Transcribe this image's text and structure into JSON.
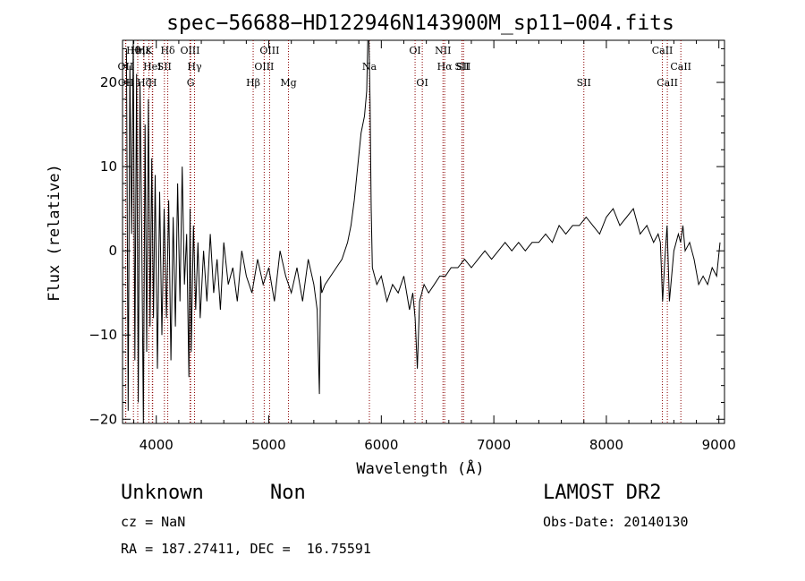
{
  "chart_data": {
    "type": "line",
    "title": "spec−56688−HD122946N143900M_sp11−004.fits",
    "xlabel": "Wavelength (Å)",
    "ylabel": "Flux (relative)",
    "xlim": [
      3700,
      9050
    ],
    "ylim": [
      -20.5,
      25
    ],
    "x_ticks": [
      4000,
      5000,
      6000,
      7000,
      8000,
      9000
    ],
    "x_tick_labels": [
      "4000",
      "5000",
      "6000",
      "7000",
      "8000",
      "9000"
    ],
    "y_ticks": [
      -20,
      -10,
      0,
      10,
      20
    ],
    "y_tick_labels": [
      "−20",
      "−10",
      "0",
      "10",
      "20"
    ],
    "grid": false,
    "line_color": "#000000",
    "marker_color": "#8b0000",
    "series": [
      {
        "values_x": [
          3735,
          3750,
          3765,
          3780,
          3795,
          3810,
          3825,
          3840,
          3855,
          3870,
          3885,
          3900,
          3915,
          3930,
          3945,
          3960,
          3975,
          3990,
          4010,
          4030,
          4050,
          4070,
          4090,
          4110,
          4130,
          4150,
          4170,
          4190,
          4210,
          4230,
          4250,
          4270,
          4290,
          4300,
          4310,
          4330,
          4350,
          4370,
          4390,
          4420,
          4450,
          4480,
          4510,
          4540,
          4570,
          4600,
          4640,
          4680,
          4720,
          4760,
          4800,
          4850,
          4900,
          4950,
          5000,
          5050,
          5100,
          5150,
          5200,
          5250,
          5300,
          5350,
          5400,
          5430,
          5450,
          5460,
          5470,
          5500,
          5550,
          5600,
          5650,
          5700,
          5730,
          5760,
          5790,
          5820,
          5850,
          5870,
          5880,
          5890,
          5900,
          5910,
          5920,
          5940,
          5960,
          6000,
          6050,
          6100,
          6150,
          6200,
          6250,
          6280,
          6300,
          6320,
          6340,
          6380,
          6420,
          6470,
          6520,
          6570,
          6620,
          6680,
          6740,
          6800,
          6860,
          6920,
          6980,
          7040,
          7100,
          7160,
          7220,
          7280,
          7340,
          7400,
          7460,
          7520,
          7580,
          7640,
          7700,
          7760,
          7820,
          7880,
          7940,
          8000,
          8060,
          8120,
          8180,
          8240,
          8300,
          8360,
          8420,
          8460,
          8480,
          8500,
          8520,
          8540,
          8560,
          8600,
          8640,
          8660,
          8680,
          8700,
          8740,
          8780,
          8820,
          8860,
          8900,
          8940,
          8980,
          9010
        ],
        "values_y": [
          24,
          -19,
          22,
          2,
          25,
          -13,
          21,
          -18,
          20,
          3,
          -21,
          15,
          -12,
          18,
          -9,
          11,
          -8,
          9,
          -14,
          7,
          -10,
          5,
          -8,
          6,
          -13,
          4,
          -9,
          8,
          -6,
          10,
          -4,
          2,
          -15,
          5,
          -12,
          3,
          -7,
          1,
          -8,
          0,
          -6,
          2,
          -5,
          -1,
          -7,
          1,
          -4,
          -2,
          -6,
          0,
          -3,
          -5,
          -1,
          -4,
          -2,
          -6,
          0,
          -3,
          -5,
          -2,
          -6,
          -1,
          -4,
          -7,
          -17,
          -3,
          -5,
          -4,
          -3,
          -2,
          -1,
          1,
          3,
          6,
          10,
          14,
          16,
          19,
          26,
          27,
          18,
          5,
          -2,
          -3,
          -4,
          -3,
          -6,
          -4,
          -5,
          -3,
          -7,
          -5,
          -8,
          -14,
          -6,
          -4,
          -5,
          -4,
          -3,
          -3,
          -2,
          -2,
          -1,
          -2,
          -1,
          0,
          -1,
          0,
          1,
          0,
          1,
          0,
          1,
          1,
          2,
          1,
          3,
          2,
          3,
          3,
          4,
          3,
          2,
          4,
          5,
          3,
          4,
          5,
          2,
          3,
          1,
          2,
          1,
          -6,
          -1,
          3,
          -6,
          0,
          2,
          1,
          3,
          0,
          1,
          -1,
          -4,
          -3,
          -4,
          -2,
          -3,
          1
        ]
      }
    ],
    "line_markers": [
      {
        "label": "OII",
        "x": 3727,
        "row": 2
      },
      {
        "label": "OII",
        "x": 3729,
        "row": 3
      },
      {
        "label": "Hθ",
        "x": 3797,
        "row": 1
      },
      {
        "label": "Hη",
        "x": 3835,
        "row": 1
      },
      {
        "label": "Hε",
        "x": 3889,
        "row": 1
      },
      {
        "label": "Hζ",
        "x": 3889,
        "row": 3
      },
      {
        "label": "K",
        "x": 3934,
        "row": 1
      },
      {
        "label": "HeI",
        "x": 3965,
        "row": 2
      },
      {
        "label": "H",
        "x": 3968,
        "row": 3
      },
      {
        "label": "SII",
        "x": 4072,
        "row": 2
      },
      {
        "label": "Hδ",
        "x": 4102,
        "row": 1
      },
      {
        "label": "OIII",
        "x": 4300,
        "row": 1
      },
      {
        "label": "Hγ",
        "x": 4340,
        "row": 2
      },
      {
        "label": "G",
        "x": 4305,
        "row": 3
      },
      {
        "label": "Hβ",
        "x": 4861,
        "row": 3
      },
      {
        "label": "OIII",
        "x": 4959,
        "row": 2
      },
      {
        "label": "OIII",
        "x": 5007,
        "row": 1
      },
      {
        "label": "Mg",
        "x": 5175,
        "row": 3
      },
      {
        "label": "Na",
        "x": 5894,
        "row": 2
      },
      {
        "label": "OI",
        "x": 6300,
        "row": 1
      },
      {
        "label": "OI",
        "x": 6364,
        "row": 3
      },
      {
        "label": "NII",
        "x": 6548,
        "row": 1
      },
      {
        "label": "Hα",
        "x": 6563,
        "row": 2
      },
      {
        "label": "SII",
        "x": 6717,
        "row": 2
      },
      {
        "label": "SII",
        "x": 6731,
        "row": 2
      },
      {
        "label": "SII",
        "x": 7800,
        "row": 3
      },
      {
        "label": "CaII",
        "x": 8498,
        "row": 1
      },
      {
        "label": "CaII",
        "x": 8542,
        "row": 3
      },
      {
        "label": "CaII",
        "x": 8662,
        "row": 2
      }
    ]
  },
  "info": {
    "class": "Unknown",
    "subclass": "Non",
    "survey": "LAMOST DR2",
    "cz": "cz = NaN",
    "obs_date": "Obs-Date: 20140130",
    "coords": "RA = 187.27411, DEC =  16.75591"
  }
}
